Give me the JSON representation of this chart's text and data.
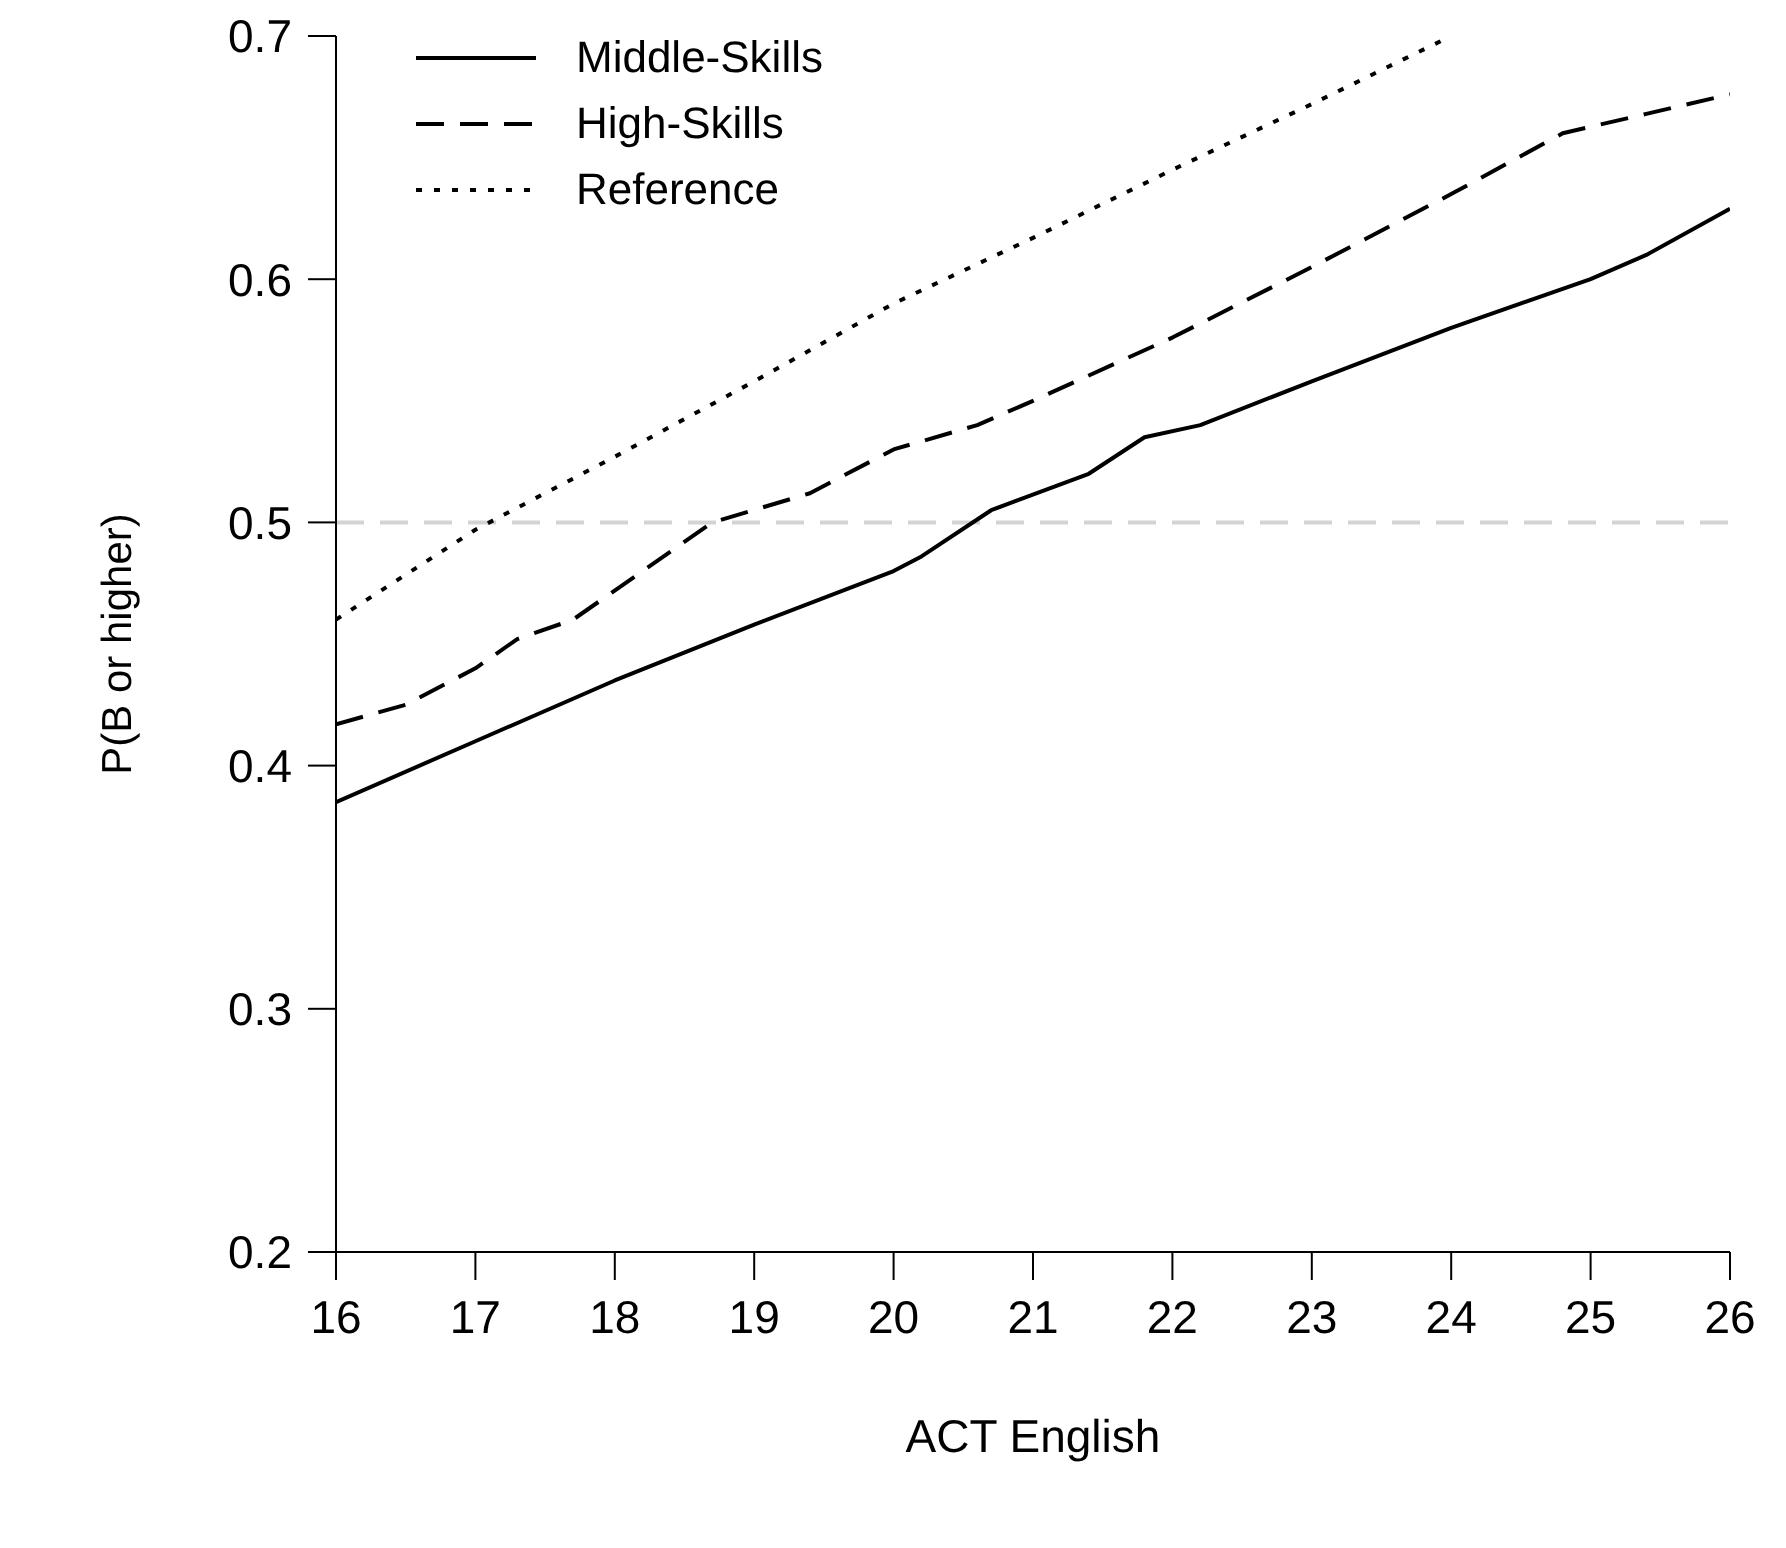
{
  "chart_data": {
    "type": "line",
    "xlabel": "ACT English",
    "ylabel": "P(B or higher)",
    "xlim": [
      16,
      26
    ],
    "ylim": [
      0.2,
      0.7
    ],
    "xticks": [
      16,
      17,
      18,
      19,
      20,
      21,
      22,
      23,
      24,
      25,
      26
    ],
    "yticks": [
      0.2,
      0.3,
      0.4,
      0.5,
      0.6,
      0.7
    ],
    "grid": false,
    "legend": "top left",
    "marker": "none",
    "series": [
      {
        "name": "Middle-Skills",
        "color": "#000000",
        "line_style": "solid",
        "x": [
          16,
          17,
          18,
          19,
          20,
          20.2,
          20.7,
          21.4,
          21.8,
          22.2,
          23,
          24,
          25,
          25.4,
          26
        ],
        "values": [
          0.385,
          0.41,
          0.435,
          0.458,
          0.48,
          0.486,
          0.505,
          0.52,
          0.535,
          0.54,
          0.558,
          0.58,
          0.6,
          0.61,
          0.629
        ]
      },
      {
        "name": "High-Skills",
        "color": "#000000",
        "line_style": "dashed",
        "x": [
          16,
          16.5,
          17,
          17.3,
          17.7,
          18.2,
          18.7,
          19.4,
          20,
          20.6,
          21,
          22,
          23,
          24,
          24.8,
          25.4,
          26
        ],
        "values": [
          0.417,
          0.425,
          0.44,
          0.452,
          0.46,
          0.48,
          0.5,
          0.512,
          0.53,
          0.54,
          0.55,
          0.576,
          0.605,
          0.635,
          0.66,
          0.668,
          0.676
        ]
      },
      {
        "name": "Reference",
        "color": "#000000",
        "line_style": "dotted",
        "x": [
          16,
          17,
          18,
          19,
          20,
          21,
          22,
          23,
          24
        ],
        "values": [
          0.46,
          0.497,
          0.527,
          0.558,
          0.59,
          0.617,
          0.645,
          0.672,
          0.7
        ]
      }
    ],
    "ref_lines": [
      {
        "axis": "y",
        "value": 0.5,
        "color": "#d3d3d3",
        "line_style": "dashed"
      }
    ]
  }
}
